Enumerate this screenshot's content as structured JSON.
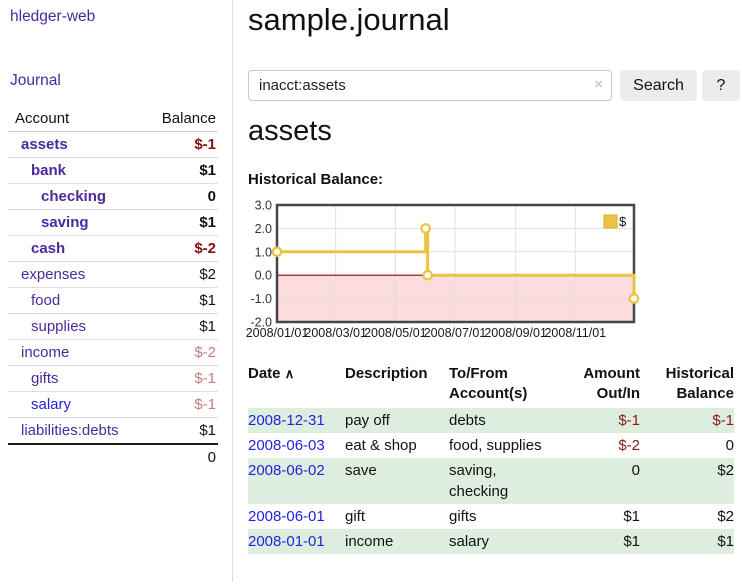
{
  "colors": {
    "link_purple": "#4c2a9d",
    "link_blue": "#2222dd",
    "negative_strong": "#8b0c0c",
    "negative_muted": "#c08080",
    "row_green": "#deeede",
    "chart_gold": "#edc240",
    "chart_negative_fill": "#fcdcdc",
    "chart_zero_line": "#990000",
    "chart_border": "#474747",
    "button_bg": "#ececec"
  },
  "sidebar": {
    "app_title": "hledger-web",
    "nav": {
      "journal": "Journal"
    },
    "accounts_table": {
      "headers": {
        "account": "Account",
        "balance": "Balance"
      },
      "rows": [
        {
          "name": "assets",
          "indent": "d1",
          "name_class": "acct-bold",
          "value": "$-1",
          "value_class": "v-negb"
        },
        {
          "name": "bank",
          "indent": "d2",
          "name_class": "acct-bold",
          "value": "$1",
          "value_class": "v-bold"
        },
        {
          "name": "checking",
          "indent": "d3",
          "name_class": "acct-bold",
          "value": "0",
          "value_class": "v-bold"
        },
        {
          "name": "saving",
          "indent": "d3",
          "name_class": "acct-bold",
          "value": "$1",
          "value_class": "v-bold"
        },
        {
          "name": "cash",
          "indent": "d2",
          "name_class": "acct-bold",
          "value": "$-2",
          "value_class": "v-negb"
        },
        {
          "name": "expenses",
          "indent": "d1",
          "name_class": "acct",
          "value": "$2",
          "value_class": "v"
        },
        {
          "name": "food",
          "indent": "d2",
          "name_class": "acct",
          "value": "$1",
          "value_class": "v"
        },
        {
          "name": "supplies",
          "indent": "d2",
          "name_class": "acct",
          "value": "$1",
          "value_class": "v"
        },
        {
          "name": "income",
          "indent": "d1",
          "name_class": "acct",
          "value": "$-2",
          "value_class": "v-negm"
        },
        {
          "name": "gifts",
          "indent": "d2",
          "name_class": "acct",
          "value": "$-1",
          "value_class": "v-negm"
        },
        {
          "name": "salary",
          "indent": "d2",
          "name_class": "acct-blue",
          "value": "$-1",
          "value_class": "v-negm"
        },
        {
          "name": "liabilities:debts",
          "indent": "d1",
          "name_class": "acct",
          "value": "$1",
          "value_class": "v"
        }
      ],
      "total": "0"
    }
  },
  "header": {
    "title": "sample.journal"
  },
  "search": {
    "value": "inacct:assets",
    "clear_icon": "×",
    "button": "Search",
    "help_button": "?"
  },
  "account_page": {
    "title": "assets",
    "chart_label": "Historical Balance:"
  },
  "chart_data": {
    "type": "line",
    "title": "Historical Balance of assets",
    "step": true,
    "legend": [
      {
        "label": "$",
        "color": "#edc240"
      }
    ],
    "legend_position": "top-right",
    "series": [
      {
        "name": "$",
        "color": "#edc240",
        "points": [
          {
            "date": "2008-01-01",
            "day": 0,
            "value": 1
          },
          {
            "date": "2008-06-01",
            "day": 152,
            "value": 2
          },
          {
            "date": "2008-06-03",
            "day": 154,
            "value": 0
          },
          {
            "date": "2008-12-31",
            "day": 365,
            "value": -1
          }
        ]
      }
    ],
    "x_ticks": [
      {
        "label": "2008/01/01",
        "day": 0
      },
      {
        "label": "2008/03/01",
        "day": 60
      },
      {
        "label": "2008/05/01",
        "day": 121
      },
      {
        "label": "2008/07/01",
        "day": 182
      },
      {
        "label": "2008/09/01",
        "day": 244
      },
      {
        "label": "2008/11/01",
        "day": 305
      }
    ],
    "y_ticks": [
      3.0,
      2.0,
      1.0,
      0.0,
      -1.0,
      -2.0
    ],
    "ylim": [
      -2,
      3
    ],
    "xlim_days": [
      0,
      365
    ],
    "grid": true,
    "negative_region": {
      "below": 0,
      "fill": "#fcdcdc",
      "line_color": "#990000"
    }
  },
  "register_table": {
    "sort_icon": "∧",
    "headers": {
      "date": "Date",
      "description": "Description",
      "accounts": "To/From Account(s)",
      "amount": "Amount Out/In",
      "balance": "Historical Balance"
    },
    "rows": [
      {
        "date": "2008-12-31",
        "description": "pay off",
        "accounts": "debts",
        "amount": "$-1",
        "amount_class": "neg",
        "balance": "$-1",
        "balance_class": "neg",
        "row_class": "row-green"
      },
      {
        "date": "2008-06-03",
        "description": "eat & shop",
        "accounts": "food, supplies",
        "amount": "$-2",
        "amount_class": "neg",
        "balance": "0",
        "balance_class": "pos",
        "row_class": "row-white"
      },
      {
        "date": "2008-06-02",
        "description": "save",
        "accounts": "saving, checking",
        "amount": "0",
        "amount_class": "pos",
        "balance": "$2",
        "balance_class": "pos",
        "row_class": "row-green"
      },
      {
        "date": "2008-06-01",
        "description": "gift",
        "accounts": "gifts",
        "amount": "$1",
        "amount_class": "pos",
        "balance": "$2",
        "balance_class": "pos",
        "row_class": "row-white"
      },
      {
        "date": "2008-01-01",
        "description": "income",
        "accounts": "salary",
        "amount": "$1",
        "amount_class": "pos",
        "balance": "$1",
        "balance_class": "pos",
        "row_class": "row-green"
      }
    ]
  }
}
